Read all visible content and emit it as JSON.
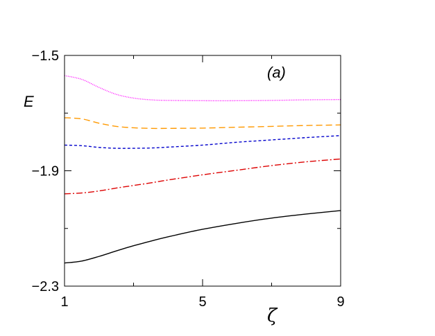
{
  "chart_data": {
    "type": "line",
    "title": "",
    "xlabel": "ζ",
    "ylabel": "E",
    "annotation": "(a)",
    "xlim": [
      1,
      9
    ],
    "ylim": [
      -2.3,
      -1.5
    ],
    "xticks": [
      1,
      5,
      9
    ],
    "xtick_labels": [
      "1",
      "5",
      "9"
    ],
    "yticks": [
      -2.3,
      -1.9,
      -1.5
    ],
    "ytick_labels": [
      "−2.3",
      "−1.9",
      "−1.5"
    ],
    "grid": false,
    "legend": "none",
    "series": [
      {
        "color": "#ff00ff",
        "dash": "1,1.5",
        "x": [
          1,
          1.5,
          2,
          2.5,
          3,
          3.5,
          4,
          5,
          6,
          7,
          8,
          9
        ],
        "y": [
          -1.57,
          -1.583,
          -1.611,
          -1.635,
          -1.648,
          -1.654,
          -1.656,
          -1.657,
          -1.657,
          -1.656,
          -1.654,
          -1.653
        ]
      },
      {
        "color": "#ff9900",
        "dash": "9,5",
        "x": [
          1,
          1.5,
          2,
          2.5,
          3,
          3.5,
          4,
          5,
          6,
          7,
          8,
          9
        ],
        "y": [
          -1.716,
          -1.72,
          -1.735,
          -1.746,
          -1.751,
          -1.753,
          -1.753,
          -1.752,
          -1.749,
          -1.746,
          -1.743,
          -1.741
        ]
      },
      {
        "color": "#0000cc",
        "dash": "4,3",
        "x": [
          1,
          1.5,
          2,
          2.5,
          3,
          3.5,
          4,
          5,
          6,
          7,
          8,
          9
        ],
        "y": [
          -1.811,
          -1.813,
          -1.819,
          -1.822,
          -1.822,
          -1.821,
          -1.818,
          -1.811,
          -1.801,
          -1.793,
          -1.785,
          -1.778
        ]
      },
      {
        "color": "#dd0000",
        "dash": "9,3,2,3",
        "x": [
          1,
          1.5,
          2,
          2.5,
          3,
          3.5,
          4,
          5,
          6,
          7,
          8,
          9
        ],
        "y": [
          -1.98,
          -1.977,
          -1.97,
          -1.96,
          -1.951,
          -1.942,
          -1.932,
          -1.914,
          -1.898,
          -1.882,
          -1.869,
          -1.859
        ]
      },
      {
        "color": "#000000",
        "dash": "",
        "x": [
          1,
          1.5,
          2,
          2.5,
          3,
          3.5,
          4,
          5,
          6,
          7,
          8,
          9
        ],
        "y": [
          -2.22,
          -2.213,
          -2.197,
          -2.178,
          -2.16,
          -2.144,
          -2.129,
          -2.103,
          -2.082,
          -2.064,
          -2.05,
          -2.038
        ]
      }
    ]
  }
}
